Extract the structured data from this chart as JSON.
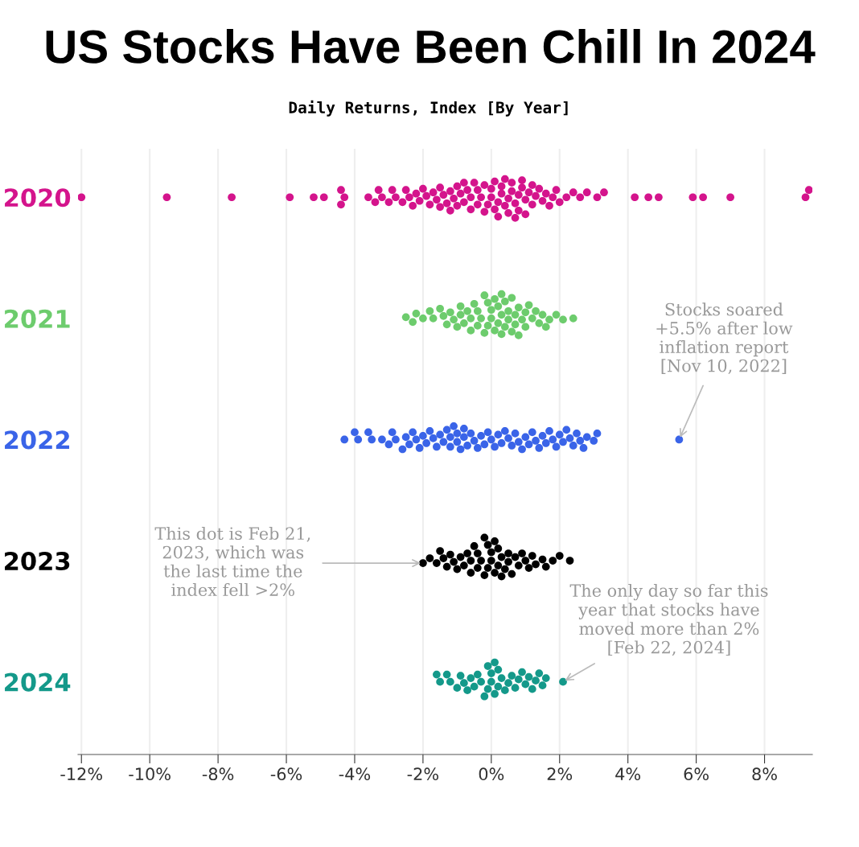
{
  "chart_data": {
    "type": "scatter",
    "title": "US Stocks Have Been Chill In 2024",
    "subtitle": "Daily Returns, Index [By Year]",
    "xlim": [
      -12.1,
      9.4
    ],
    "xticks": [
      {
        "value": -12,
        "label": "-12%"
      },
      {
        "value": -10,
        "label": "-10%"
      },
      {
        "value": -8,
        "label": "-8%"
      },
      {
        "value": -6,
        "label": "-6%"
      },
      {
        "value": -4,
        "label": "-4%"
      },
      {
        "value": -2,
        "label": "-2%"
      },
      {
        "value": 0,
        "label": "0%"
      },
      {
        "value": 2,
        "label": "2%"
      },
      {
        "value": 4,
        "label": "4%"
      },
      {
        "value": 6,
        "label": "6%"
      },
      {
        "value": 8,
        "label": "8%"
      }
    ],
    "ylim": [
      2024.6,
      2019.6
    ],
    "yticks": [
      2020,
      2021,
      2022,
      2023,
      2024
    ],
    "grid": "x",
    "marker": "circle",
    "series": [
      {
        "color": "#d4148c",
        "x": [
          -12.0,
          -9.5,
          -7.6,
          -5.9,
          -5.2,
          -4.9,
          -4.4,
          -4.4,
          -4.3,
          -3.6,
          -3.4,
          -3.3,
          -3.2,
          -3.0,
          -2.9,
          -2.8,
          -2.6,
          -2.5,
          -2.4,
          -2.3,
          -2.2,
          -2.1,
          -2.0,
          -1.9,
          -1.8,
          -1.7,
          -1.6,
          -1.5,
          -1.5,
          -1.4,
          -1.3,
          -1.2,
          -1.2,
          -1.1,
          -1.0,
          -1.0,
          -0.9,
          -0.8,
          -0.8,
          -0.7,
          -0.6,
          -0.6,
          -0.5,
          -0.4,
          -0.4,
          -0.3,
          -0.2,
          -0.2,
          -0.1,
          0.0,
          0.0,
          0.1,
          0.1,
          0.2,
          0.2,
          0.3,
          0.3,
          0.4,
          0.4,
          0.5,
          0.5,
          0.6,
          0.6,
          0.7,
          0.7,
          0.8,
          0.8,
          0.9,
          0.9,
          1.0,
          1.0,
          1.1,
          1.2,
          1.2,
          1.3,
          1.4,
          1.5,
          1.6,
          1.7,
          1.8,
          1.9,
          2.0,
          2.2,
          2.4,
          2.6,
          2.8,
          3.1,
          3.3,
          4.2,
          4.6,
          4.9,
          5.9,
          6.2,
          7.0,
          9.2,
          9.3
        ],
        "values": [
          2020,
          2020,
          2020,
          2020,
          2020,
          2020,
          2019.94,
          2020.06,
          2020,
          2020,
          2020.04,
          2019.94,
          2020,
          2020.04,
          2019.94,
          2020,
          2020.04,
          2019.94,
          2020,
          2020.07,
          2019.97,
          2020.03,
          2019.93,
          2019.99,
          2020.06,
          2019.96,
          2020.02,
          2019.92,
          2020.08,
          2019.98,
          2020.05,
          2019.95,
          2020.11,
          2020.01,
          2020.07,
          2019.91,
          2019.97,
          2020.04,
          2019.88,
          2019.94,
          2020,
          2020.1,
          2019.88,
          2019.94,
          2020.06,
          2020,
          2019.9,
          2020.12,
          2020.06,
          2020,
          2019.93,
          2020.1,
          2019.87,
          2020.04,
          2020.16,
          2019.97,
          2019.91,
          2020.07,
          2019.85,
          2020.01,
          2020.13,
          2019.95,
          2019.88,
          2020.05,
          2020.17,
          2019.98,
          2020.11,
          2019.92,
          2019.86,
          2020.02,
          2020.14,
          2019.96,
          2020.06,
          2019.9,
          2019.99,
          2019.93,
          2020.03,
          2019.97,
          2020.07,
          2020,
          2019.94,
          2020.04,
          2020,
          2019.96,
          2020,
          2019.96,
          2020,
          2019.96,
          2020,
          2020,
          2020,
          2020,
          2020,
          2020,
          2020,
          2019.94
        ]
      },
      {
        "color": "#6dcc6d",
        "x": [
          -2.5,
          -2.3,
          -2.2,
          -2.0,
          -1.8,
          -1.7,
          -1.5,
          -1.4,
          -1.3,
          -1.2,
          -1.1,
          -1.0,
          -0.9,
          -0.9,
          -0.8,
          -0.7,
          -0.6,
          -0.6,
          -0.5,
          -0.4,
          -0.4,
          -0.3,
          -0.2,
          -0.2,
          -0.1,
          -0.1,
          0.0,
          0.0,
          0.1,
          0.1,
          0.2,
          0.2,
          0.3,
          0.3,
          0.3,
          0.4,
          0.4,
          0.5,
          0.5,
          0.6,
          0.6,
          0.7,
          0.7,
          0.8,
          0.8,
          0.9,
          1.0,
          1.0,
          1.1,
          1.2,
          1.3,
          1.4,
          1.5,
          1.6,
          1.7,
          1.9,
          2.1,
          2.4
        ],
        "values": [
          2020.99,
          2021.03,
          2020.96,
          2021,
          2020.94,
          2021,
          2020.92,
          2020.98,
          2021.05,
          2020.95,
          2021.01,
          2021.07,
          2020.97,
          2020.9,
          2021.04,
          2020.94,
          2021,
          2021.1,
          2020.88,
          2020.94,
          2021.06,
          2021,
          2021.12,
          2020.81,
          2021.06,
          2020.87,
          2021,
          2020.93,
          2021.1,
          2020.84,
          2021.04,
          2020.9,
          2020.97,
          2021.13,
          2020.8,
          2021.07,
          2020.86,
          2021.01,
          2020.94,
          2021.11,
          2020.83,
          2020.97,
          2021.05,
          2020.91,
          2021.14,
          2021.01,
          2020.95,
          2021.07,
          2020.89,
          2021,
          2020.94,
          2021.04,
          2020.97,
          2021.07,
          2021.01,
          2020.97,
          2021.01,
          2021
        ]
      },
      {
        "color": "#3a64e8",
        "x": [
          -4.3,
          -4.0,
          -3.9,
          -3.6,
          -3.5,
          -3.2,
          -3.0,
          -2.9,
          -2.8,
          -2.6,
          -2.5,
          -2.4,
          -2.3,
          -2.2,
          -2.1,
          -2.0,
          -1.9,
          -1.8,
          -1.7,
          -1.6,
          -1.5,
          -1.4,
          -1.3,
          -1.2,
          -1.2,
          -1.1,
          -1.0,
          -1.0,
          -0.9,
          -0.8,
          -0.8,
          -0.7,
          -0.6,
          -0.5,
          -0.4,
          -0.3,
          -0.2,
          -0.1,
          0.0,
          0.1,
          0.2,
          0.3,
          0.4,
          0.5,
          0.6,
          0.7,
          0.8,
          0.9,
          1.0,
          1.1,
          1.2,
          1.3,
          1.4,
          1.5,
          1.6,
          1.7,
          1.8,
          1.9,
          2.0,
          2.1,
          2.2,
          2.3,
          2.4,
          2.5,
          2.6,
          2.7,
          2.8,
          3.0,
          3.1,
          5.5
        ],
        "values": [
          2022,
          2021.94,
          2022,
          2021.94,
          2022,
          2022,
          2022.04,
          2021.94,
          2022,
          2022.08,
          2021.98,
          2022.04,
          2021.94,
          2022,
          2022.07,
          2021.97,
          2022.03,
          2021.93,
          2021.99,
          2022.06,
          2021.96,
          2022.02,
          2021.92,
          2021.98,
          2022.06,
          2021.89,
          2022.02,
          2021.95,
          2022.08,
          2021.98,
          2021.91,
          2022.05,
          2021.95,
          2022.01,
          2022.07,
          2021.97,
          2022.04,
          2021.94,
          2022,
          2022.06,
          2021.96,
          2022.03,
          2021.93,
          2021.99,
          2022.05,
          2021.95,
          2022.02,
          2022.08,
          2021.98,
          2022.04,
          2021.94,
          2022.01,
          2022.07,
          2021.97,
          2022.03,
          2021.93,
          2022,
          2022.06,
          2021.96,
          2022.02,
          2021.92,
          2021.99,
          2022.05,
          2021.95,
          2022.01,
          2022.07,
          2021.98,
          2022.01,
          2021.95,
          2022
        ]
      },
      {
        "color": "#000000",
        "x": [
          -2.0,
          -1.8,
          -1.6,
          -1.5,
          -1.4,
          -1.3,
          -1.2,
          -1.1,
          -1.0,
          -0.9,
          -0.8,
          -0.7,
          -0.6,
          -0.6,
          -0.5,
          -0.4,
          -0.4,
          -0.3,
          -0.2,
          -0.2,
          -0.1,
          -0.1,
          0.0,
          0.0,
          0.1,
          0.1,
          0.2,
          0.2,
          0.3,
          0.3,
          0.4,
          0.5,
          0.5,
          0.6,
          0.7,
          0.8,
          0.9,
          1.0,
          1.1,
          1.2,
          1.3,
          1.5,
          1.6,
          1.8,
          2.0,
          2.3
        ],
        "values": [
          2023.02,
          2022.98,
          2023.02,
          2022.92,
          2022.98,
          2023.05,
          2022.95,
          2023.01,
          2023.07,
          2022.97,
          2023.04,
          2022.94,
          2023,
          2023.1,
          2022.88,
          2022.94,
          2023.06,
          2023,
          2023.12,
          2022.81,
          2023.06,
          2022.87,
          2023,
          2022.93,
          2023.1,
          2022.84,
          2023.04,
          2022.9,
          2022.97,
          2023.13,
          2023.07,
          2023.01,
          2022.94,
          2023.11,
          2022.97,
          2023.04,
          2022.94,
          2023,
          2023.06,
          2022.96,
          2023.03,
          2022.99,
          2023.05,
          2023,
          2022.96,
          2023
        ]
      },
      {
        "color": "#14998a",
        "x": [
          -1.6,
          -1.5,
          -1.3,
          -1.2,
          -1.0,
          -0.9,
          -0.8,
          -0.7,
          -0.6,
          -0.5,
          -0.4,
          -0.3,
          -0.2,
          -0.1,
          -0.1,
          0.0,
          0.0,
          0.1,
          0.1,
          0.2,
          0.2,
          0.3,
          0.4,
          0.5,
          0.6,
          0.7,
          0.8,
          0.9,
          1.0,
          1.1,
          1.2,
          1.3,
          1.4,
          1.5,
          1.6,
          2.1
        ],
        "values": [
          2023.94,
          2024,
          2023.94,
          2024,
          2024.05,
          2023.95,
          2024.01,
          2024.07,
          2023.97,
          2024.04,
          2023.94,
          2024,
          2024.12,
          2024.06,
          2023.87,
          2024,
          2023.93,
          2024.1,
          2023.84,
          2024.04,
          2023.9,
          2023.97,
          2024.07,
          2024.01,
          2023.95,
          2024.05,
          2023.98,
          2023.92,
          2024.02,
          2023.96,
          2024.06,
          2023.99,
          2023.93,
          2024.03,
          2023.97,
          2024
        ]
      }
    ],
    "annotations": [
      {
        "text": "Stocks soared\n+5.5% after low\ninflation report\n[Nov 10, 2022]",
        "x": 5.5,
        "y": 2022
      },
      {
        "text": "This dot is Feb 21,\n2023, which was\nthe last time the\nindex fell >2%",
        "x": -2.0,
        "y": 2023.02
      },
      {
        "text": "The only day so far this\nyear that stocks have\nmoved more than 2%\n[Feb 22, 2024]",
        "x": 2.1,
        "y": 2024
      }
    ]
  }
}
